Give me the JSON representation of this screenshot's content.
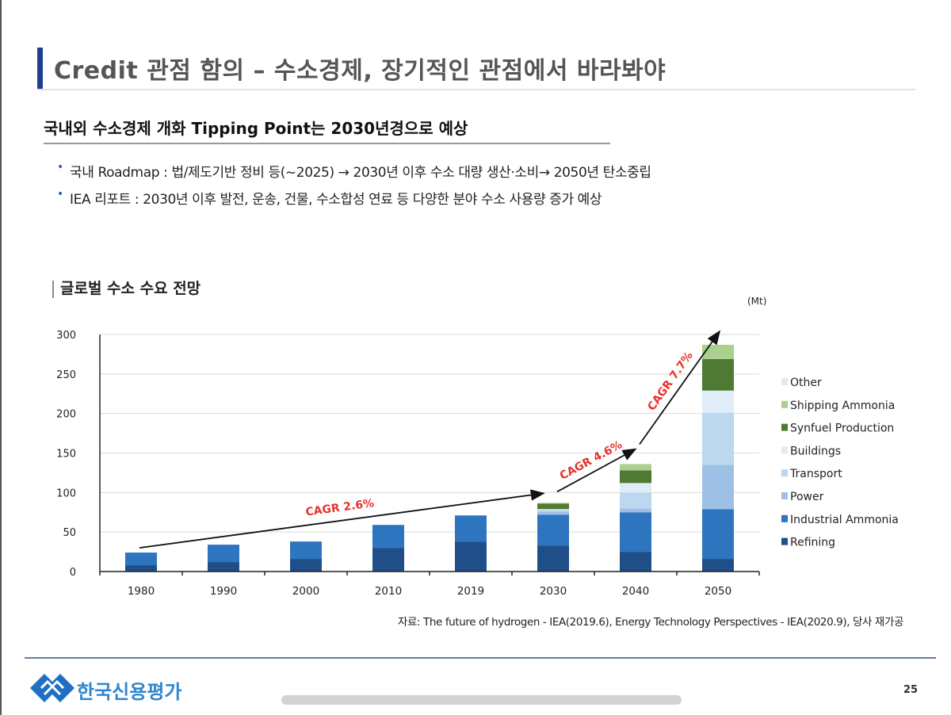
{
  "header": {
    "title": "Credit 관점 함의 – 수소경제, 장기적인 관점에서 바라봐야",
    "subtitle": "국내외 수소경제 개화 Tipping Point는 2030년경으로 예상"
  },
  "bullets": [
    {
      "marker": "•",
      "text": "국내 Roadmap : 법/제도기반 정비 등(~2025) → 2030년 이후 수소 대량 생산·소비→ 2050년 탄소중립"
    },
    {
      "marker": "•",
      "text": "IEA 리포트 : 2030년 이후 발전, 운송, 건물, 수소합성 연료 등 다양한 분야 수소 사용량 증가 예상"
    }
  ],
  "chart_section_title": "글로벌 수소 수요 전망",
  "chart_data": {
    "type": "bar",
    "stacked": true,
    "unit": "(Mt)",
    "categories": [
      "1980",
      "1990",
      "2000",
      "2010",
      "2019",
      "2030",
      "2040",
      "2050"
    ],
    "ylim": [
      0,
      300
    ],
    "yticks": [
      0,
      50,
      100,
      150,
      200,
      250,
      300
    ],
    "grid": true,
    "legend_position": "right",
    "series": [
      {
        "name": "Refining",
        "color": "#1f4e89",
        "values": [
          8,
          12,
          16,
          30,
          38,
          33,
          25,
          16
        ]
      },
      {
        "name": "Industrial Ammonia",
        "color": "#2e75c0",
        "values": [
          16,
          22,
          22,
          29,
          33,
          39,
          50,
          63
        ]
      },
      {
        "name": "Power",
        "color": "#9dc0e4",
        "values": [
          0,
          0,
          0,
          0,
          0,
          4,
          5,
          56
        ]
      },
      {
        "name": "Transport",
        "color": "#bdd7ee",
        "values": [
          0,
          0,
          0,
          0,
          0,
          2,
          20,
          66
        ]
      },
      {
        "name": "Buildings",
        "color": "#e0ecf8",
        "values": [
          0,
          0,
          0,
          0,
          0,
          1,
          12,
          28
        ]
      },
      {
        "name": "Synfuel Production",
        "color": "#4f7a33",
        "values": [
          0,
          0,
          0,
          0,
          0,
          7,
          16,
          40
        ]
      },
      {
        "name": "Shipping Ammonia",
        "color": "#a9d08e",
        "values": [
          0,
          0,
          0,
          0,
          0,
          1,
          8,
          18
        ]
      },
      {
        "name": "Other",
        "color": "#e2efda",
        "values": [
          0,
          0,
          0,
          0,
          0,
          0,
          0,
          0
        ]
      }
    ],
    "annotations": [
      {
        "label": "CAGR 2.6%",
        "from": [
          "1980",
          30
        ],
        "to": [
          "2030",
          99
        ]
      },
      {
        "label": "CAGR 4.6%",
        "from": [
          "2030",
          101
        ],
        "to": [
          "2040",
          155
        ]
      },
      {
        "label": "CAGR 7.7%",
        "from": [
          "2040",
          161
        ],
        "to": [
          "2050",
          304
        ]
      }
    ],
    "annotation_color": "#e8322b"
  },
  "source": "자료: The future of hydrogen - IEA(2019.6), Energy Technology Perspectives - IEA(2020.9), 당사 재가공",
  "footer": {
    "logo_text": "한국신용평가",
    "page_number": "25"
  }
}
